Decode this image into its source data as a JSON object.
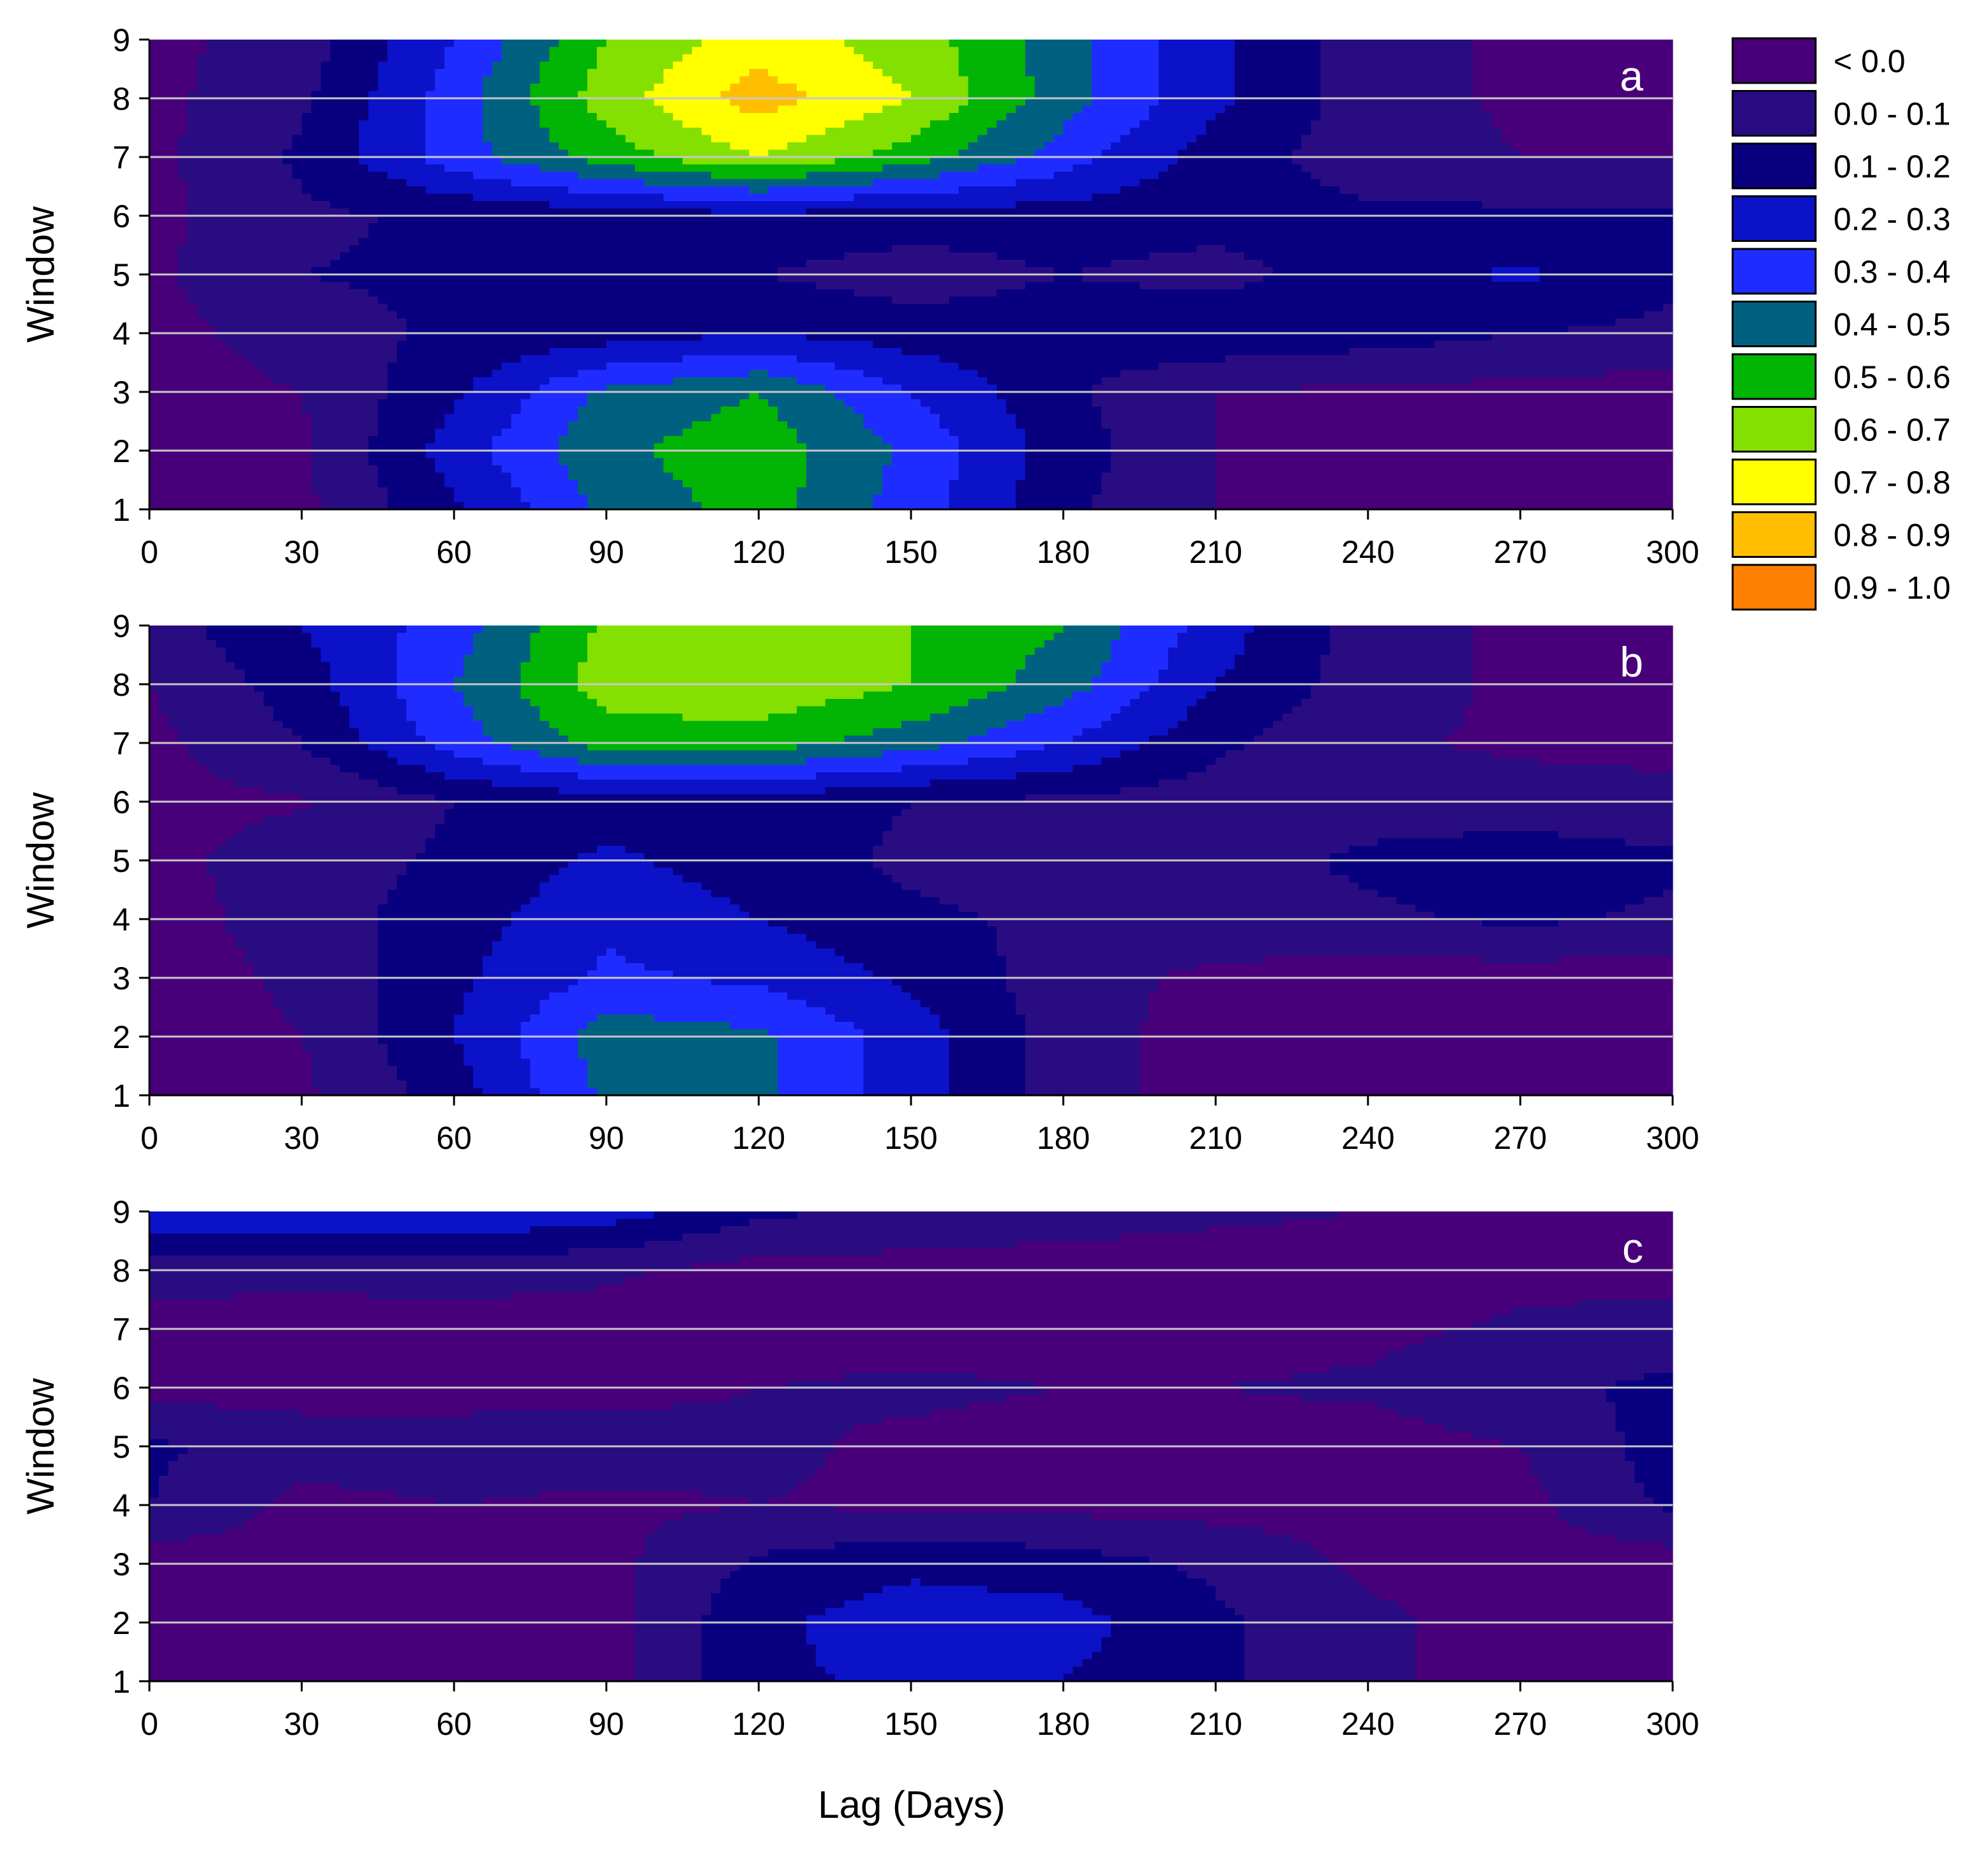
{
  "figure": {
    "xlabel": "Lag (Days)",
    "ylabel": "Window"
  },
  "legend": {
    "position": "right of panel a",
    "entries": [
      {
        "label": "< 0.0",
        "color": "#48007a"
      },
      {
        "label": "0.0 - 0.1",
        "color": "#2a0c82"
      },
      {
        "label": "0.1 - 0.2",
        "color": "#08007f"
      },
      {
        "label": "0.2 - 0.3",
        "color": "#0c12c8"
      },
      {
        "label": "0.3 - 0.4",
        "color": "#1f2cff"
      },
      {
        "label": "0.4 - 0.5",
        "color": "#006080"
      },
      {
        "label": "0.5 - 0.6",
        "color": "#02b404"
      },
      {
        "label": "0.6 - 0.7",
        "color": "#84e000"
      },
      {
        "label": "0.7 - 0.8",
        "color": "#ffff00"
      },
      {
        "label": "0.8 - 0.9",
        "color": "#ffbe00"
      },
      {
        "label": "0.9 - 1.0",
        "color": "#ff8000"
      }
    ]
  },
  "chart_data": [
    {
      "type": "heatmap",
      "panel_label": "a",
      "xlabel": "",
      "ylabel": "Window",
      "x_ticks": [
        "0",
        "30",
        "60",
        "90",
        "120",
        "150",
        "180",
        "210",
        "240",
        "270",
        "300"
      ],
      "y_ticks": [
        "1",
        "2",
        "3",
        "4",
        "5",
        "6",
        "7",
        "8",
        "9"
      ],
      "xlim": [
        0,
        300
      ],
      "ylim": [
        1,
        9
      ],
      "grid": "horizontal",
      "lags": [
        0,
        30,
        60,
        90,
        120,
        150,
        180,
        210,
        240,
        270,
        300
      ],
      "windows": [
        1,
        2,
        3,
        4,
        5,
        6,
        7,
        8,
        9
      ],
      "values": [
        [
          -0.05,
          -0.02,
          0.18,
          0.42,
          0.55,
          0.35,
          0.12,
          0.0,
          -0.05,
          -0.05,
          -0.05
        ],
        [
          -0.05,
          -0.02,
          0.25,
          0.48,
          0.56,
          0.38,
          0.15,
          0.0,
          -0.05,
          -0.05,
          -0.05
        ],
        [
          -0.05,
          0.0,
          0.18,
          0.42,
          0.5,
          0.3,
          0.12,
          0.0,
          -0.02,
          -0.03,
          -0.05
        ],
        [
          -0.04,
          0.05,
          0.12,
          0.15,
          0.2,
          0.15,
          0.15,
          0.18,
          0.15,
          0.1,
          0.08
        ],
        [
          -0.02,
          0.1,
          0.12,
          0.12,
          0.1,
          0.05,
          0.1,
          0.07,
          0.15,
          0.22,
          0.12
        ],
        [
          -0.03,
          0.08,
          0.12,
          0.15,
          0.18,
          0.15,
          0.15,
          0.13,
          0.12,
          0.12,
          0.12
        ],
        [
          -0.03,
          0.12,
          0.35,
          0.55,
          0.7,
          0.55,
          0.35,
          0.15,
          0.05,
          0.0,
          0.0
        ],
        [
          -0.03,
          0.08,
          0.35,
          0.65,
          0.85,
          0.7,
          0.45,
          0.22,
          0.05,
          -0.02,
          -0.03
        ],
        [
          -0.03,
          0.05,
          0.3,
          0.6,
          0.75,
          0.65,
          0.45,
          0.22,
          0.05,
          -0.02,
          -0.03
        ]
      ]
    },
    {
      "type": "heatmap",
      "panel_label": "b",
      "xlabel": "",
      "ylabel": "Window",
      "x_ticks": [
        "0",
        "30",
        "60",
        "90",
        "120",
        "150",
        "180",
        "210",
        "240",
        "270",
        "300"
      ],
      "y_ticks": [
        "1",
        "2",
        "3",
        "4",
        "5",
        "6",
        "7",
        "8",
        "9"
      ],
      "xlim": [
        0,
        300
      ],
      "ylim": [
        1,
        9
      ],
      "grid": "horizontal",
      "lags": [
        0,
        30,
        60,
        90,
        120,
        150,
        180,
        210,
        240,
        270,
        300
      ],
      "windows": [
        1,
        2,
        3,
        4,
        5,
        6,
        7,
        8,
        9
      ],
      "values": [
        [
          -0.05,
          -0.02,
          0.15,
          0.42,
          0.42,
          0.25,
          0.05,
          -0.05,
          -0.05,
          -0.05,
          -0.05
        ],
        [
          -0.05,
          0.0,
          0.2,
          0.45,
          0.42,
          0.25,
          0.05,
          -0.05,
          -0.05,
          -0.05,
          -0.05
        ],
        [
          -0.05,
          0.02,
          0.18,
          0.32,
          0.28,
          0.18,
          0.05,
          -0.03,
          -0.05,
          -0.05,
          -0.05
        ],
        [
          -0.05,
          0.05,
          0.15,
          0.28,
          0.2,
          0.12,
          0.08,
          0.08,
          0.08,
          0.12,
          0.08
        ],
        [
          -0.03,
          0.05,
          0.12,
          0.22,
          0.15,
          0.08,
          0.05,
          0.05,
          0.12,
          0.15,
          0.12
        ],
        [
          -0.03,
          -0.01,
          0.1,
          0.15,
          0.15,
          0.1,
          0.08,
          0.05,
          0.05,
          0.05,
          0.03
        ],
        [
          -0.03,
          0.1,
          0.35,
          0.55,
          0.55,
          0.45,
          0.3,
          0.12,
          0.02,
          -0.02,
          -0.03
        ],
        [
          0.0,
          0.15,
          0.4,
          0.65,
          0.68,
          0.6,
          0.45,
          0.2,
          0.05,
          -0.02,
          -0.03
        ],
        [
          0.05,
          0.2,
          0.35,
          0.62,
          0.68,
          0.6,
          0.5,
          0.25,
          0.05,
          -0.02,
          -0.03
        ]
      ]
    },
    {
      "type": "heatmap",
      "panel_label": "c",
      "xlabel": "Lag (Days)",
      "ylabel": "Window",
      "x_ticks": [
        "0",
        "30",
        "60",
        "90",
        "120",
        "150",
        "180",
        "210",
        "240",
        "270",
        "300"
      ],
      "y_ticks": [
        "1",
        "2",
        "3",
        "4",
        "5",
        "6",
        "7",
        "8",
        "9"
      ],
      "xlim": [
        0,
        300
      ],
      "ylim": [
        1,
        9
      ],
      "grid": "horizontal",
      "lags": [
        0,
        30,
        60,
        90,
        120,
        150,
        180,
        210,
        240,
        270,
        300
      ],
      "windows": [
        1,
        2,
        3,
        4,
        5,
        6,
        7,
        8,
        9
      ],
      "values": [
        [
          -0.05,
          -0.05,
          -0.05,
          -0.05,
          0.18,
          0.22,
          0.2,
          0.12,
          0.02,
          -0.04,
          -0.05
        ],
        [
          -0.05,
          -0.05,
          -0.05,
          -0.04,
          0.18,
          0.25,
          0.24,
          0.12,
          0.02,
          -0.04,
          -0.05
        ],
        [
          -0.05,
          -0.05,
          -0.05,
          -0.03,
          0.12,
          0.18,
          0.15,
          0.08,
          -0.02,
          -0.04,
          -0.05
        ],
        [
          0.1,
          -0.03,
          0.0,
          -0.02,
          0.0,
          -0.02,
          -0.03,
          -0.04,
          -0.04,
          -0.03,
          0.12
        ],
        [
          0.12,
          0.05,
          0.05,
          0.05,
          0.02,
          -0.02,
          -0.04,
          -0.05,
          -0.05,
          0.0,
          0.15
        ],
        [
          -0.04,
          -0.04,
          -0.04,
          -0.03,
          0.0,
          0.02,
          0.0,
          0.0,
          0.02,
          0.08,
          0.12
        ],
        [
          -0.05,
          -0.05,
          -0.05,
          -0.05,
          -0.05,
          -0.05,
          -0.05,
          -0.05,
          -0.03,
          0.02,
          0.05
        ],
        [
          0.05,
          0.03,
          0.05,
          0.02,
          -0.04,
          -0.04,
          -0.05,
          -0.05,
          -0.05,
          -0.04,
          -0.04
        ],
        [
          0.28,
          0.28,
          0.3,
          0.25,
          0.12,
          0.08,
          0.05,
          0.02,
          0.0,
          -0.02,
          -0.03
        ]
      ]
    }
  ]
}
